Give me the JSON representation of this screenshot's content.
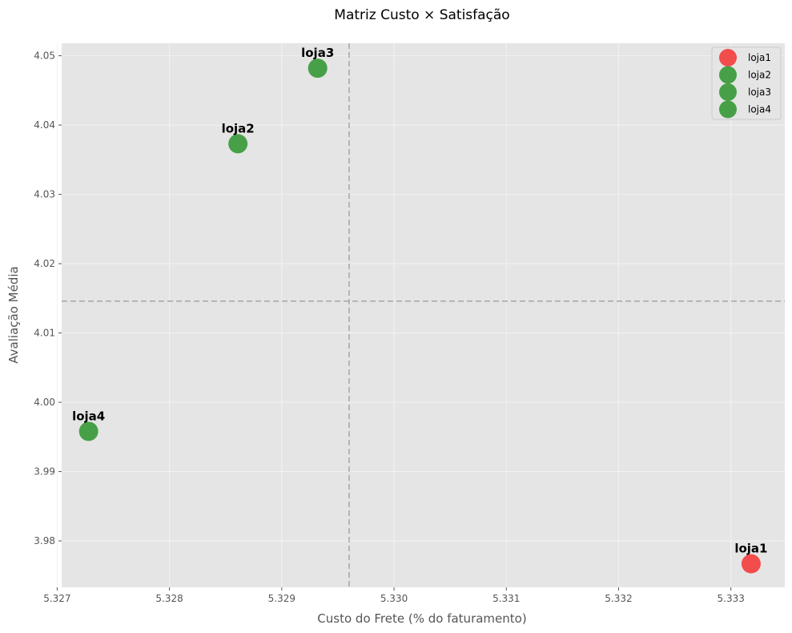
{
  "chart_data": {
    "type": "scatter",
    "title": "Matriz Custo × Satisfação",
    "xlabel": "Custo do Frete (% do faturamento)",
    "ylabel": "Avaliação Média",
    "xlim": [
      5.32704,
      5.33348
    ],
    "ylim": [
      3.9733,
      4.0518
    ],
    "xticks": [
      "5.327",
      "5.328",
      "5.329",
      "5.330",
      "5.331",
      "5.332",
      "5.333"
    ],
    "yticks": [
      "3.98",
      "3.99",
      "4.00",
      "4.01",
      "4.02",
      "4.03",
      "4.04",
      "4.05"
    ],
    "grid": true,
    "legend_position": "top-right",
    "reference_lines": {
      "x": 5.3296,
      "y": 4.0146
    },
    "series": [
      {
        "name": "loja1",
        "x": 5.33318,
        "y": 3.9767,
        "color": "#f43f3f"
      },
      {
        "name": "loja2",
        "x": 5.32861,
        "y": 4.0373,
        "color": "#3a9a3a"
      },
      {
        "name": "loja3",
        "x": 5.32932,
        "y": 4.0482,
        "color": "#3a9a3a"
      },
      {
        "name": "loja4",
        "x": 5.32728,
        "y": 3.9958,
        "color": "#3a9a3a"
      }
    ]
  }
}
